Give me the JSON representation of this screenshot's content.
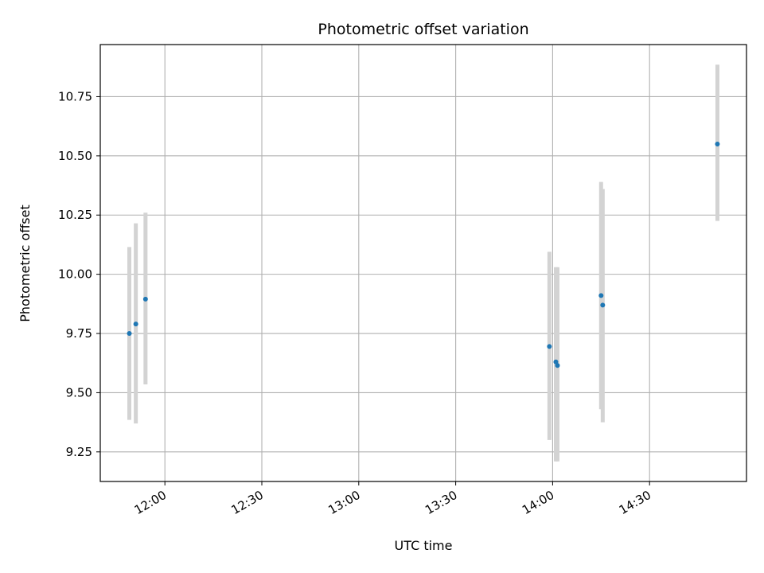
{
  "chart_data": {
    "type": "scatter",
    "title": "Photometric offset variation",
    "xlabel": "UTC time",
    "ylabel": "Photometric offset",
    "x_ticks": [
      "12:00",
      "12:30",
      "13:00",
      "13:30",
      "14:00",
      "14:30"
    ],
    "y_ticks": [
      "9.25",
      "9.50",
      "9.75",
      "10.00",
      "10.25",
      "10.50",
      "10.75"
    ],
    "xlim": [
      "11:40",
      "15:00"
    ],
    "ylim": [
      9.125,
      10.97
    ],
    "grid": true,
    "colors": {
      "point": "#1f77b4",
      "errorbar": "#d3d3d3",
      "grid": "#b0b0b0"
    },
    "points": [
      {
        "x": "11:49",
        "y": 9.75,
        "yerr_low": 9.385,
        "yerr_high": 10.115
      },
      {
        "x": "11:51",
        "y": 9.79,
        "yerr_low": 9.37,
        "yerr_high": 10.215
      },
      {
        "x": "11:54",
        "y": 9.895,
        "yerr_low": 9.535,
        "yerr_high": 10.26
      },
      {
        "x": "13:59",
        "y": 9.695,
        "yerr_low": 9.3,
        "yerr_high": 10.095
      },
      {
        "x": "14:01",
        "y": 9.63,
        "yerr_low": 9.21,
        "yerr_high": 10.03
      },
      {
        "x": "14:01:30",
        "y": 9.615,
        "yerr_low": 9.21,
        "yerr_high": 10.03
      },
      {
        "x": "14:15",
        "y": 9.91,
        "yerr_low": 9.43,
        "yerr_high": 10.39
      },
      {
        "x": "14:15:30",
        "y": 9.87,
        "yerr_low": 9.375,
        "yerr_high": 10.36
      },
      {
        "x": "14:51",
        "y": 10.55,
        "yerr_low": 10.225,
        "yerr_high": 10.885
      }
    ]
  }
}
